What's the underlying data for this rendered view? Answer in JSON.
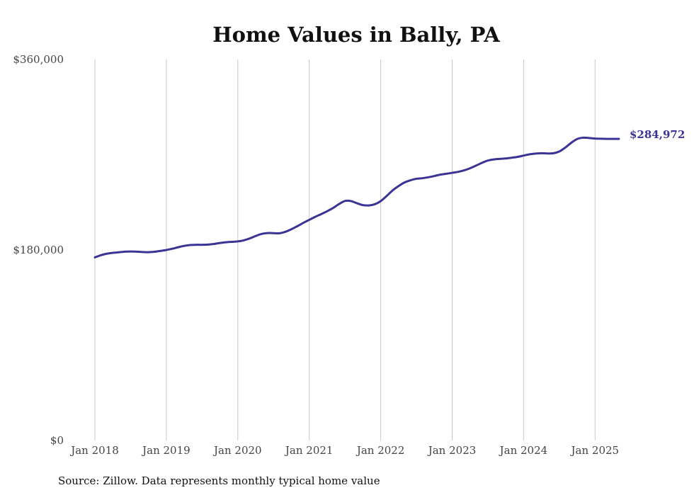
{
  "chart_data": {
    "type": "line",
    "title": "Home Values in Bally, PA",
    "xlabel": "",
    "ylabel": "",
    "ylim": [
      0,
      360000
    ],
    "y_ticks": [
      0,
      180000,
      360000
    ],
    "y_tick_labels": [
      "$0",
      "$180,000",
      "$360,000"
    ],
    "x_ticks": [
      "Jan 2018",
      "Jan 2019",
      "Jan 2020",
      "Jan 2021",
      "Jan 2022",
      "Jan 2023",
      "Jan 2024",
      "Jan 2025"
    ],
    "x_tick_years": [
      2018,
      2019,
      2020,
      2021,
      2022,
      2023,
      2024,
      2025
    ],
    "xlim": [
      "2018-01",
      "2025-05"
    ],
    "grid": "vertical",
    "color": "#3b3494",
    "end_label": "$284,972",
    "series": [
      {
        "x": [
          "2018-01",
          "2018-02",
          "2018-03",
          "2018-04",
          "2018-05",
          "2018-06",
          "2018-07",
          "2018-08",
          "2018-09",
          "2018-10",
          "2018-11",
          "2018-12",
          "2019-01",
          "2019-02",
          "2019-03",
          "2019-04",
          "2019-05",
          "2019-06",
          "2019-07",
          "2019-08",
          "2019-09",
          "2019-10",
          "2019-11",
          "2019-12",
          "2020-01",
          "2020-02",
          "2020-03",
          "2020-04",
          "2020-05",
          "2020-06",
          "2020-07",
          "2020-08",
          "2020-09",
          "2020-10",
          "2020-11",
          "2020-12",
          "2021-01",
          "2021-02",
          "2021-03",
          "2021-04",
          "2021-05",
          "2021-06",
          "2021-07",
          "2021-08",
          "2021-09",
          "2021-10",
          "2021-11",
          "2021-12",
          "2022-01",
          "2022-02",
          "2022-03",
          "2022-04",
          "2022-05",
          "2022-06",
          "2022-07",
          "2022-08",
          "2022-09",
          "2022-10",
          "2022-11",
          "2022-12",
          "2023-01",
          "2023-02",
          "2023-03",
          "2023-04",
          "2023-05",
          "2023-06",
          "2023-07",
          "2023-08",
          "2023-09",
          "2023-10",
          "2023-11",
          "2023-12",
          "2024-01",
          "2024-02",
          "2024-03",
          "2024-04",
          "2024-05",
          "2024-06",
          "2024-07",
          "2024-08",
          "2024-09",
          "2024-10",
          "2024-11",
          "2024-12",
          "2025-01",
          "2025-02",
          "2025-03",
          "2025-04",
          "2025-05"
        ],
        "values": [
          173000,
          175000,
          176500,
          177300,
          177800,
          178400,
          178600,
          178400,
          178100,
          177900,
          178300,
          179100,
          180000,
          181200,
          182600,
          183900,
          184700,
          184900,
          184900,
          185100,
          185700,
          186600,
          187300,
          187700,
          188100,
          189100,
          190900,
          193200,
          195200,
          196000,
          195900,
          195800,
          197200,
          199600,
          202500,
          205600,
          208500,
          211300,
          213900,
          216600,
          219700,
          223400,
          226300,
          226200,
          224200,
          222400,
          222100,
          223200,
          226200,
          231000,
          236300,
          240400,
          243800,
          245900,
          247300,
          247800,
          248700,
          249900,
          251200,
          252000,
          252900,
          253800,
          255200,
          257200,
          259700,
          262300,
          264500,
          265600,
          266100,
          266500,
          267200,
          268000,
          269200,
          270400,
          271100,
          271400,
          271200,
          271400,
          273100,
          276800,
          281300,
          284900,
          286100,
          285800,
          285300,
          285100,
          285000,
          285000,
          284972
        ]
      }
    ]
  },
  "source_note": "Source: Zillow. Data represents monthly typical home value"
}
